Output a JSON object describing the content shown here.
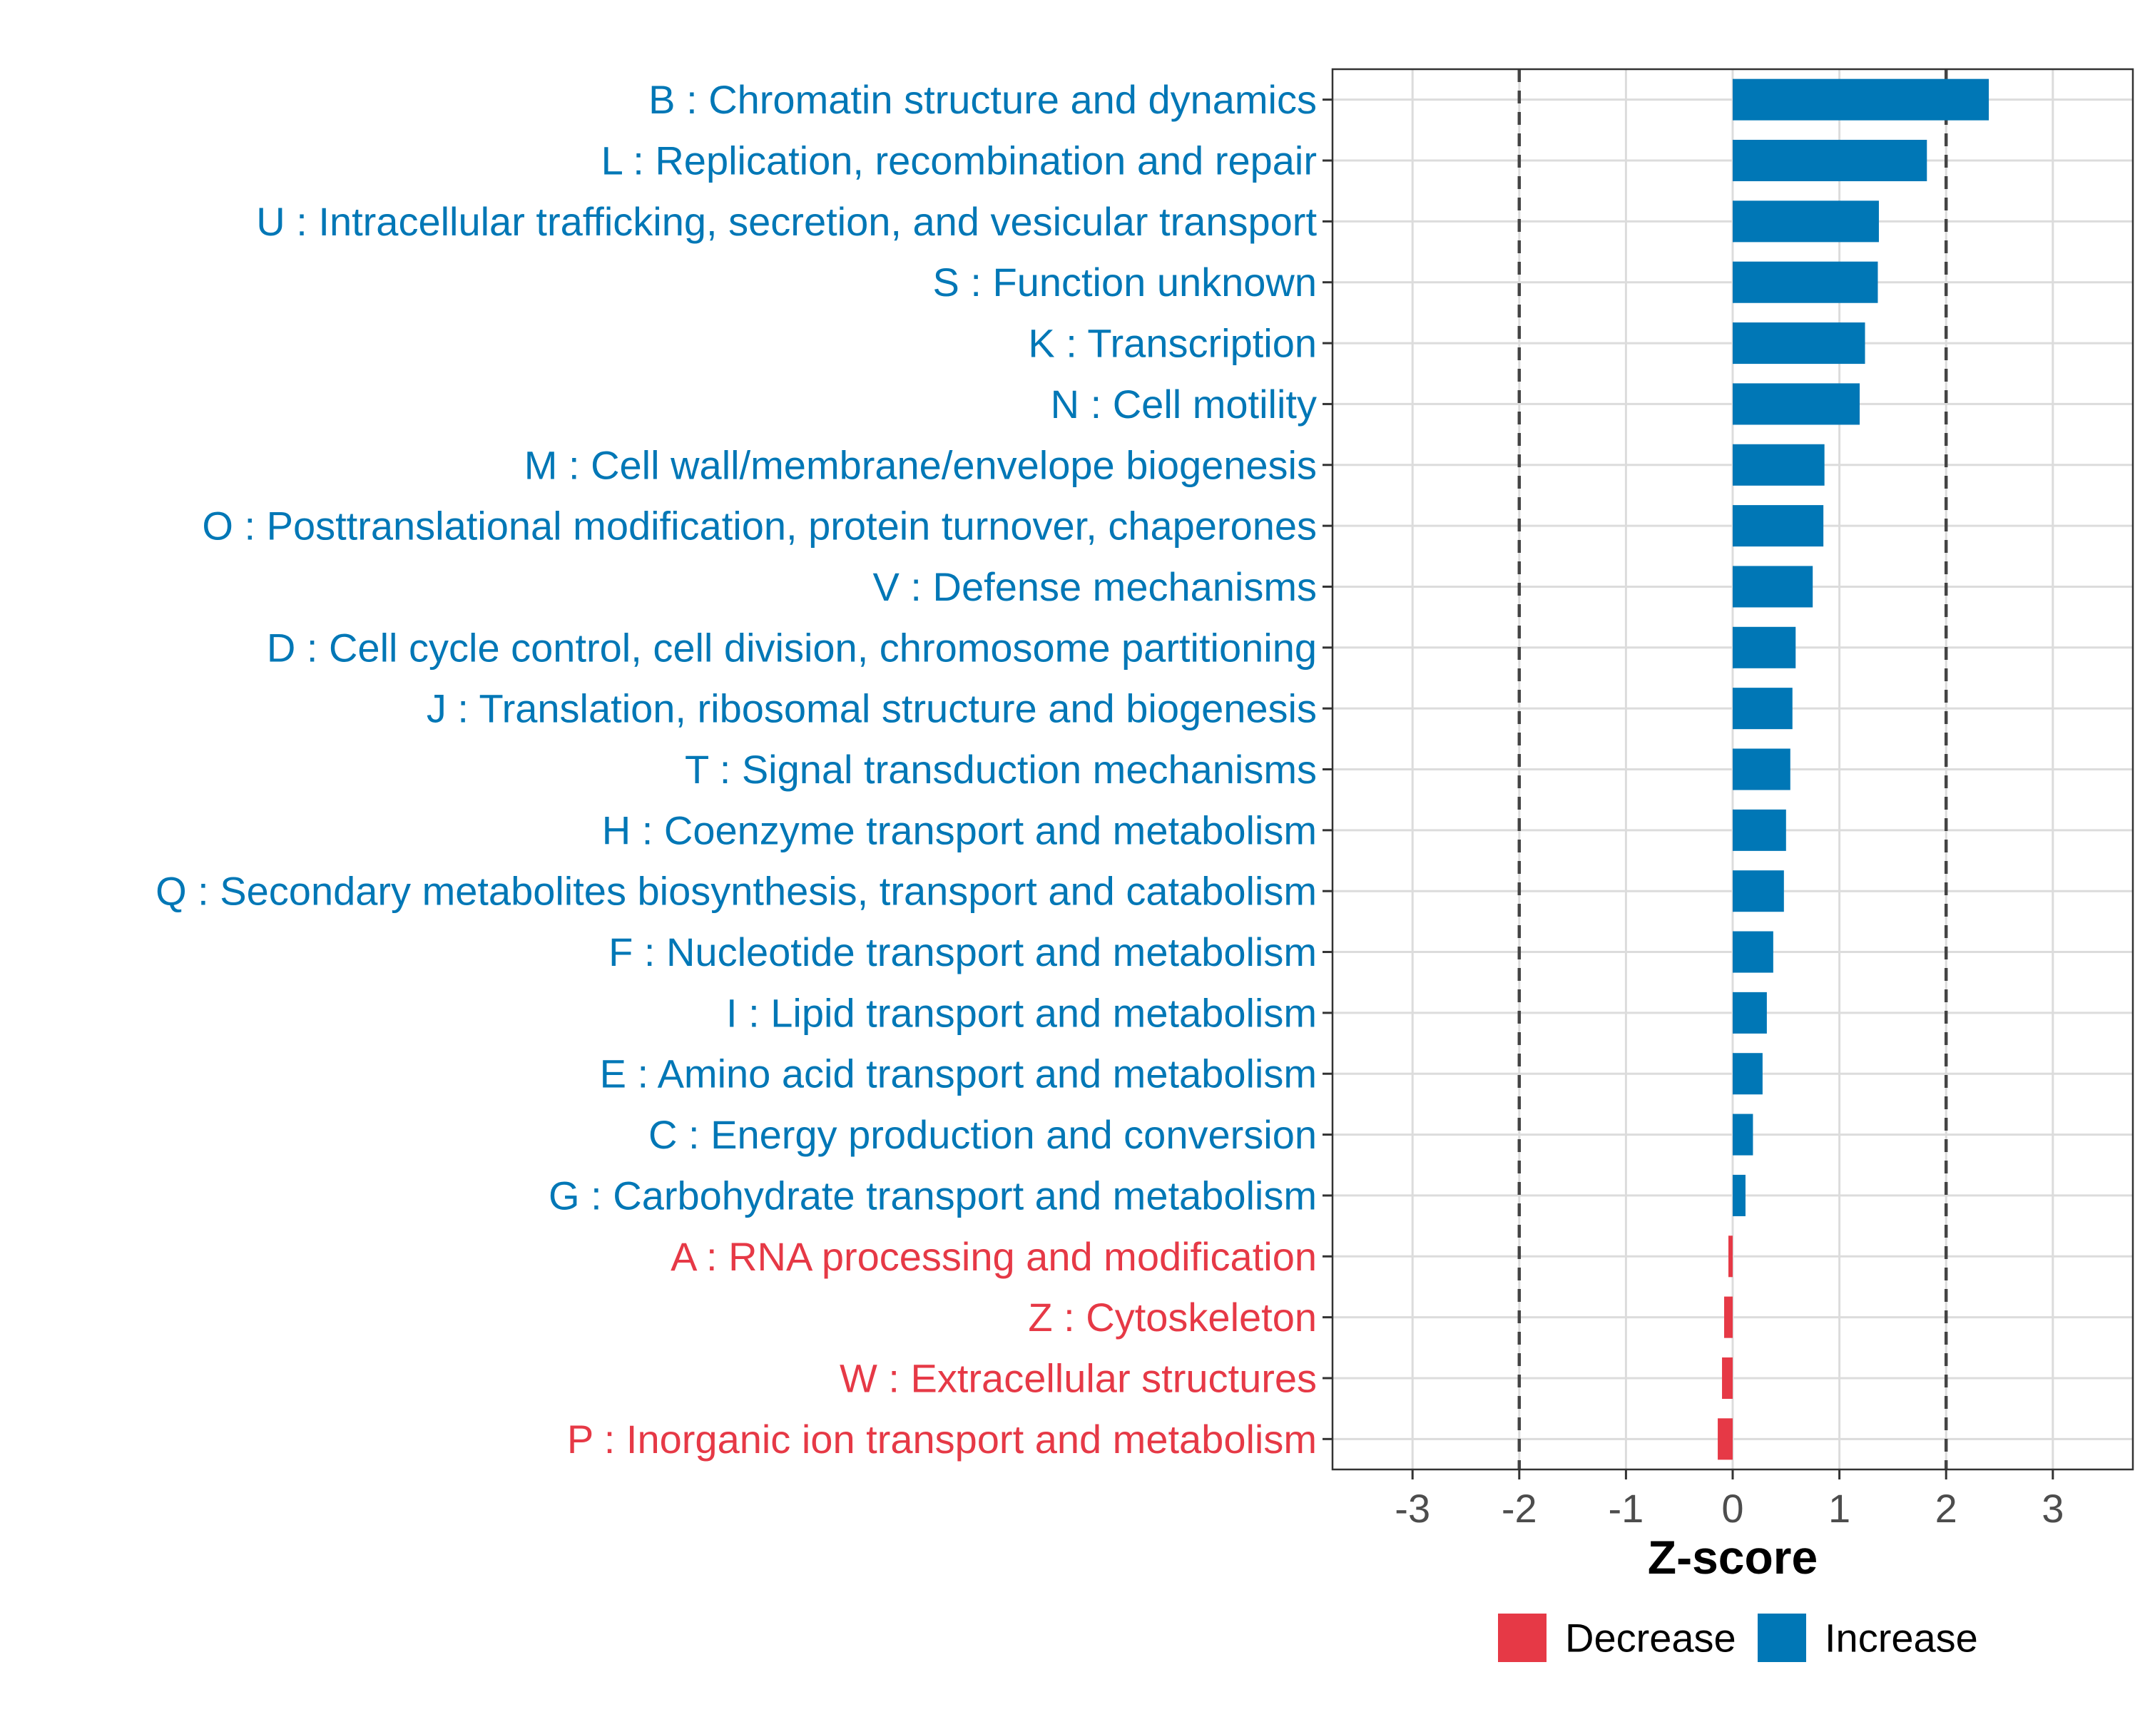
{
  "chart_data": {
    "type": "bar",
    "orientation": "horizontal",
    "title": "",
    "xlabel": "Z-score",
    "ylabel": "",
    "xlim": [
      -3.75,
      3.75
    ],
    "x_ticks": [
      -3,
      -2,
      -1,
      0,
      1,
      2,
      3
    ],
    "x_tick_labels": [
      "-3",
      "-2",
      "-1",
      "0",
      "1",
      "2",
      "3"
    ],
    "threshold_lines": [
      -2,
      2
    ],
    "grid": true,
    "legend_position": "bottom",
    "legend": [
      {
        "label": "Decrease",
        "color": "#e63946"
      },
      {
        "label": "Increase",
        "color": "#0077b6"
      }
    ],
    "colors": {
      "increase": "#0077b6",
      "decrease": "#e63946"
    },
    "categories": [
      "B : Chromatin structure and dynamics",
      "L : Replication, recombination and repair",
      "U : Intracellular trafficking, secretion, and vesicular transport",
      "S : Function unknown",
      "K : Transcription",
      "N : Cell motility",
      "M : Cell wall/membrane/envelope biogenesis",
      "O : Posttranslational modification, protein turnover, chaperones",
      "V : Defense mechanisms",
      "D : Cell cycle control, cell division, chromosome partitioning",
      "J : Translation, ribosomal structure and biogenesis",
      "T : Signal transduction mechanisms",
      "H : Coenzyme transport and metabolism",
      "Q : Secondary metabolites biosynthesis, transport and catabolism",
      "F : Nucleotide transport and metabolism",
      "I : Lipid transport and metabolism",
      "E : Amino acid transport and metabolism",
      "C : Energy production and conversion",
      "G : Carbohydrate transport and metabolism",
      "A : RNA processing and modification",
      "Z : Cytoskeleton",
      "W : Extracellular structures",
      "P : Inorganic ion transport and metabolism"
    ],
    "values": [
      2.4,
      1.82,
      1.37,
      1.36,
      1.24,
      1.19,
      0.86,
      0.85,
      0.75,
      0.59,
      0.56,
      0.54,
      0.5,
      0.48,
      0.38,
      0.32,
      0.28,
      0.19,
      0.12,
      -0.04,
      -0.08,
      -0.1,
      -0.14
    ]
  }
}
